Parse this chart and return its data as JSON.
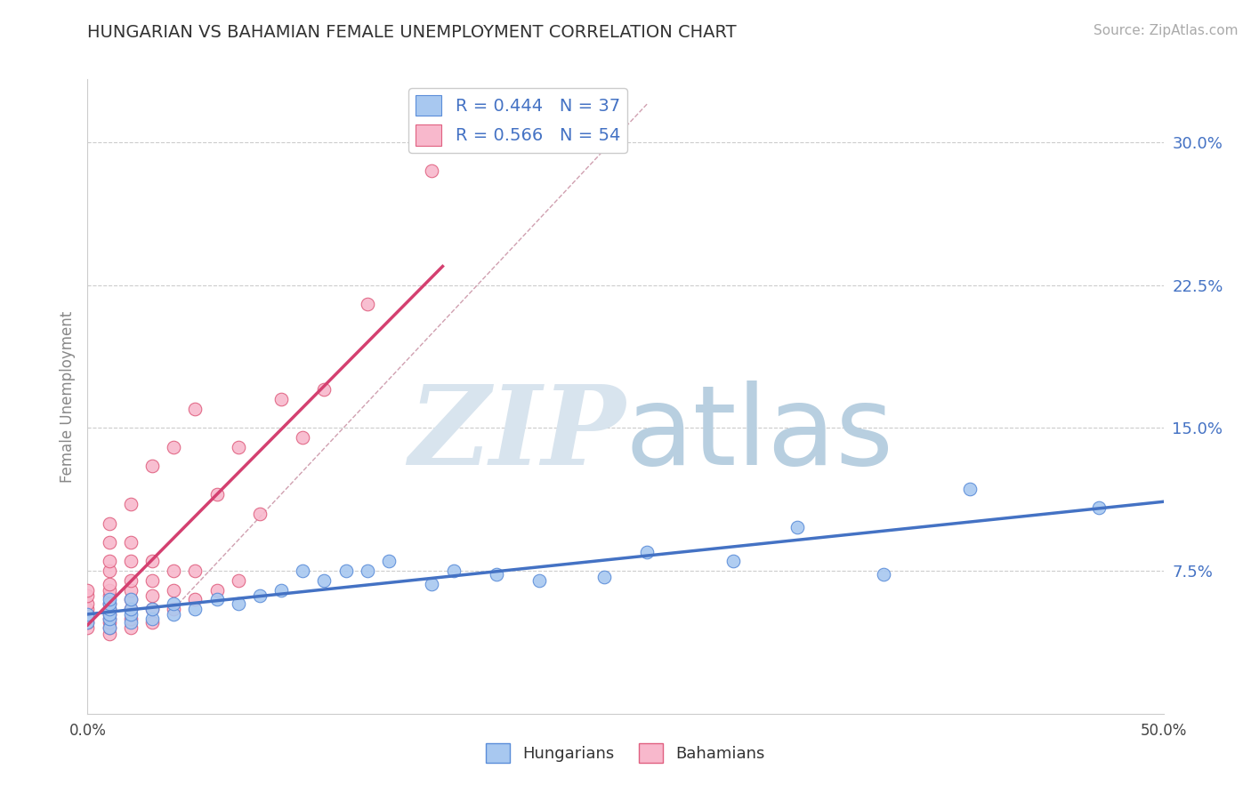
{
  "title": "HUNGARIAN VS BAHAMIAN FEMALE UNEMPLOYMENT CORRELATION CHART",
  "source_text": "Source: ZipAtlas.com",
  "ylabel": "Female Unemployment",
  "xlim": [
    0.0,
    0.5
  ],
  "ylim": [
    0.0,
    0.333
  ],
  "yticks": [
    0.0,
    0.075,
    0.15,
    0.225,
    0.3
  ],
  "ytick_labels": [
    "",
    "7.5%",
    "15.0%",
    "22.5%",
    "30.0%"
  ],
  "xticks": [
    0.0,
    0.05,
    0.1,
    0.15,
    0.2,
    0.25,
    0.3,
    0.35,
    0.4,
    0.45,
    0.5
  ],
  "xtick_labels": [
    "0.0%",
    "",
    "",
    "",
    "",
    "",
    "",
    "",
    "",
    "",
    "50.0%"
  ],
  "hungarian_x": [
    0.0,
    0.0,
    0.01,
    0.01,
    0.01,
    0.01,
    0.01,
    0.01,
    0.02,
    0.02,
    0.02,
    0.02,
    0.03,
    0.03,
    0.04,
    0.04,
    0.05,
    0.06,
    0.07,
    0.08,
    0.09,
    0.1,
    0.11,
    0.12,
    0.13,
    0.14,
    0.16,
    0.17,
    0.19,
    0.21,
    0.24,
    0.26,
    0.3,
    0.33,
    0.37,
    0.41,
    0.47
  ],
  "hungarian_y": [
    0.048,
    0.052,
    0.045,
    0.05,
    0.052,
    0.055,
    0.058,
    0.06,
    0.048,
    0.052,
    0.055,
    0.06,
    0.05,
    0.055,
    0.052,
    0.058,
    0.055,
    0.06,
    0.058,
    0.062,
    0.065,
    0.075,
    0.07,
    0.075,
    0.075,
    0.08,
    0.068,
    0.075,
    0.073,
    0.07,
    0.072,
    0.085,
    0.08,
    0.098,
    0.073,
    0.118,
    0.108
  ],
  "bahamian_x": [
    0.0,
    0.0,
    0.0,
    0.0,
    0.0,
    0.0,
    0.0,
    0.0,
    0.01,
    0.01,
    0.01,
    0.01,
    0.01,
    0.01,
    0.01,
    0.01,
    0.01,
    0.01,
    0.01,
    0.01,
    0.01,
    0.01,
    0.02,
    0.02,
    0.02,
    0.02,
    0.02,
    0.02,
    0.02,
    0.02,
    0.02,
    0.03,
    0.03,
    0.03,
    0.03,
    0.03,
    0.03,
    0.04,
    0.04,
    0.04,
    0.04,
    0.05,
    0.05,
    0.05,
    0.06,
    0.06,
    0.07,
    0.07,
    0.08,
    0.09,
    0.1,
    0.11,
    0.13,
    0.16
  ],
  "bahamian_y": [
    0.045,
    0.048,
    0.05,
    0.052,
    0.055,
    0.058,
    0.062,
    0.065,
    0.042,
    0.045,
    0.048,
    0.05,
    0.052,
    0.055,
    0.058,
    0.062,
    0.065,
    0.068,
    0.075,
    0.08,
    0.09,
    0.1,
    0.045,
    0.05,
    0.055,
    0.06,
    0.065,
    0.07,
    0.08,
    0.09,
    0.11,
    0.048,
    0.055,
    0.062,
    0.07,
    0.08,
    0.13,
    0.055,
    0.065,
    0.075,
    0.14,
    0.06,
    0.075,
    0.16,
    0.065,
    0.115,
    0.07,
    0.14,
    0.105,
    0.165,
    0.145,
    0.17,
    0.215,
    0.285
  ],
  "hungarian_R": 0.444,
  "hungarian_N": 37,
  "bahamian_R": 0.566,
  "bahamian_N": 54,
  "hungarian_color": "#a8c8f0",
  "bahamian_color": "#f8b8cc",
  "hungarian_edge_color": "#5b8dd9",
  "bahamian_edge_color": "#e06080",
  "hungarian_line_color": "#4472c4",
  "bahamian_line_color": "#d44070",
  "diag_color": "#d0a0b0",
  "grid_color": "#cccccc",
  "title_color": "#333333",
  "label_color": "#4472c4",
  "watermark_zip_color": "#c8d8e8",
  "watermark_atlas_color": "#b0c8e0",
  "background_color": "#ffffff"
}
